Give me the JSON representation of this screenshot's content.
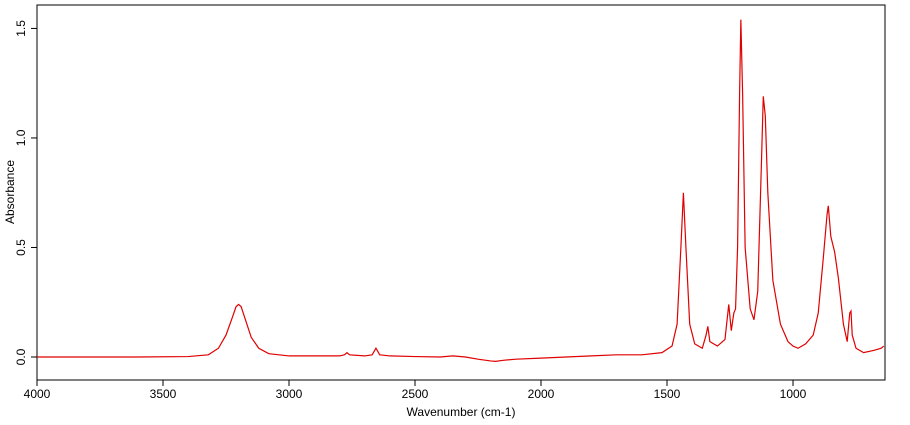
{
  "chart_data": {
    "type": "line",
    "x_label": "Wavenumber (cm-1)",
    "y_label": "Absorbance",
    "xlim": [
      4000,
      635
    ],
    "ylim": [
      -0.105,
      1.607
    ],
    "xticks": [
      4000,
      3500,
      3000,
      2500,
      2000,
      1500,
      1000
    ],
    "yticks": [
      {
        "value": 0,
        "label": "0.0"
      },
      0.5,
      {
        "value": 1,
        "label": "1.0"
      },
      1.5
    ],
    "series": [
      {
        "color": "#e00000",
        "x": [
          4000,
          3800,
          3600,
          3400,
          3320,
          3280,
          3250,
          3225,
          3210,
          3200,
          3190,
          3170,
          3150,
          3120,
          3080,
          3000,
          2900,
          2800,
          2780,
          2770,
          2760,
          2700,
          2670,
          2655,
          2640,
          2600,
          2500,
          2400,
          2350,
          2300,
          2250,
          2200,
          2180,
          2150,
          2100,
          2000,
          1900,
          1800,
          1700,
          1600,
          1520,
          1480,
          1460,
          1445,
          1435,
          1425,
          1410,
          1390,
          1360,
          1345,
          1338,
          1330,
          1300,
          1270,
          1255,
          1245,
          1235,
          1228,
          1220,
          1212,
          1207,
          1200,
          1190,
          1170,
          1155,
          1140,
          1125,
          1118,
          1110,
          1100,
          1080,
          1050,
          1020,
          1000,
          980,
          950,
          920,
          900,
          880,
          865,
          860,
          850,
          835,
          820,
          800,
          785,
          775,
          770,
          765,
          750,
          720,
          680,
          650,
          640
        ],
        "values": [
          0.0,
          0.0,
          0.0,
          0.002,
          0.01,
          0.04,
          0.1,
          0.18,
          0.23,
          0.24,
          0.23,
          0.16,
          0.09,
          0.04,
          0.015,
          0.005,
          0.005,
          0.005,
          0.01,
          0.02,
          0.01,
          0.005,
          0.01,
          0.04,
          0.01,
          0.005,
          0.002,
          0.0,
          0.005,
          0.0,
          -0.01,
          -0.018,
          -0.02,
          -0.015,
          -0.01,
          -0.005,
          0.0,
          0.005,
          0.01,
          0.01,
          0.02,
          0.05,
          0.15,
          0.5,
          0.75,
          0.5,
          0.15,
          0.06,
          0.04,
          0.1,
          0.14,
          0.07,
          0.05,
          0.08,
          0.24,
          0.12,
          0.2,
          0.22,
          0.5,
          1.2,
          1.54,
          1.2,
          0.5,
          0.22,
          0.17,
          0.3,
          0.9,
          1.19,
          1.1,
          0.75,
          0.35,
          0.15,
          0.07,
          0.05,
          0.04,
          0.06,
          0.1,
          0.2,
          0.45,
          0.65,
          0.69,
          0.55,
          0.48,
          0.36,
          0.15,
          0.07,
          0.2,
          0.21,
          0.1,
          0.04,
          0.02,
          0.03,
          0.04,
          0.05
        ]
      }
    ]
  }
}
